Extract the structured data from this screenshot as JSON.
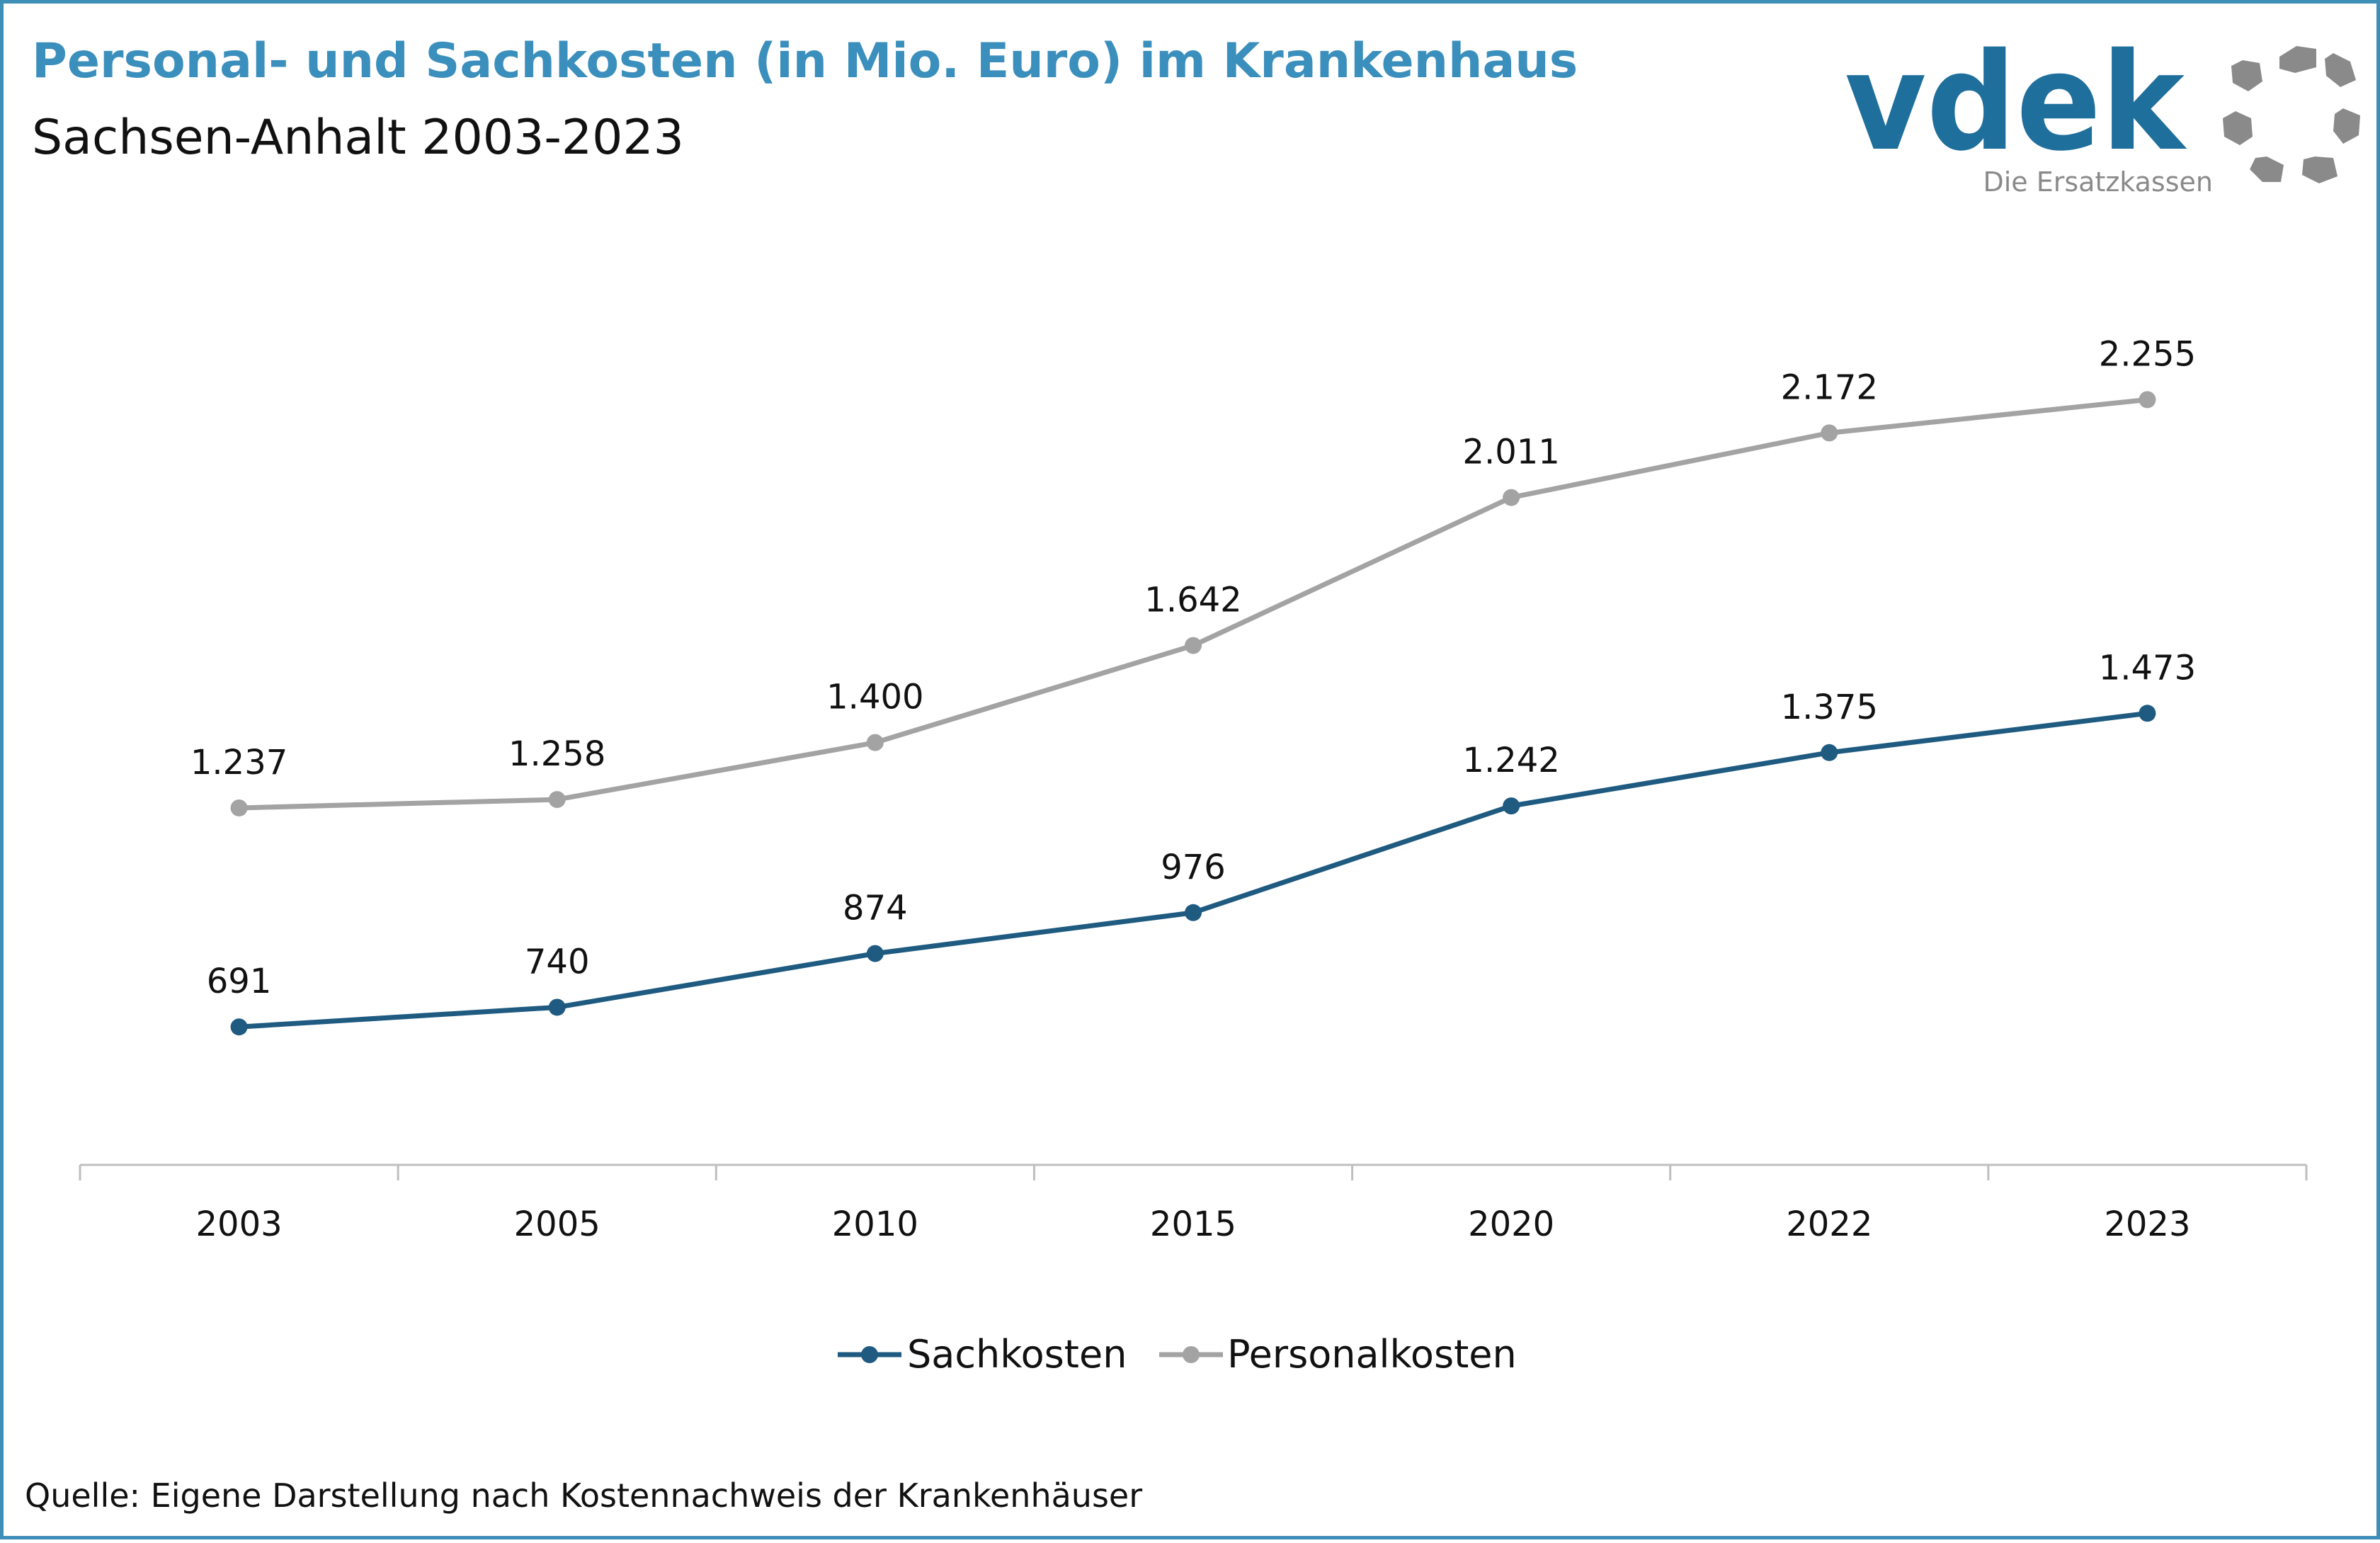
{
  "title": "Personal- und Sachkosten (in Mio. Euro) im Krankenhaus",
  "subtitle": "Sachsen-Anhalt 2003-2023",
  "logo": {
    "wordmark": "vdek",
    "tagline": "Die Ersatzkassen"
  },
  "source": "Quelle: Eigene Darstellung nach Kostennachweis der Krankenhäuser",
  "colors": {
    "title": "#3b8fbd",
    "sachkosten": "#1f5a80",
    "personalkosten": "#a3a3a3",
    "frame": "#3d8fb8",
    "logo_text": "#1f6f9c",
    "logo_gray": "#8a8a8a"
  },
  "chart_data": {
    "type": "line",
    "categories": [
      "2003",
      "2005",
      "2010",
      "2015",
      "2020",
      "2022",
      "2023"
    ],
    "series": [
      {
        "name": "Sachkosten",
        "values": [
          691,
          740,
          874,
          976,
          1242,
          1375,
          1473
        ],
        "labels": [
          "691",
          "740",
          "874",
          "976",
          "1.242",
          "1.375",
          "1.473"
        ]
      },
      {
        "name": "Personalkosten",
        "values": [
          1237,
          1258,
          1400,
          1642,
          2011,
          2172,
          2255
        ],
        "labels": [
          "1.237",
          "1.258",
          "1.400",
          "1.642",
          "2.011",
          "2.172",
          "2.255"
        ]
      }
    ],
    "legend_position": "bottom",
    "grid": false
  }
}
